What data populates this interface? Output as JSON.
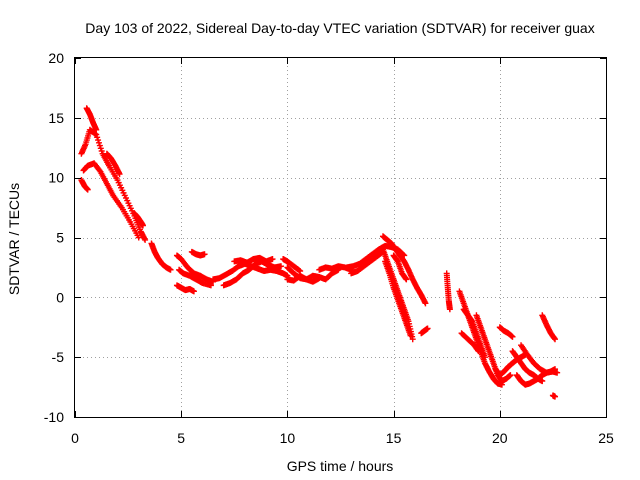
{
  "chart_data": {
    "type": "scatter",
    "title": "Day 103 of 2022, Sidereal Day-to-day VTEC variation (SDTVAR) for receiver guax",
    "xlabel": "GPS time / hours",
    "ylabel": "SDTVAR / TECUs",
    "xlim": [
      0,
      25
    ],
    "ylim": [
      -10,
      20
    ],
    "xticks": [
      0,
      5,
      10,
      15,
      20,
      25
    ],
    "yticks": [
      -10,
      -5,
      0,
      5,
      10,
      15,
      20
    ],
    "xtick_labels": [
      "0",
      "5",
      "10",
      "15",
      "20",
      "25"
    ],
    "ytick_labels": [
      "-10",
      "-5",
      "0",
      "5",
      "10",
      "15",
      "20"
    ],
    "grid": true,
    "marker": "+",
    "series": [
      {
        "name": "SDTVAR",
        "color": "#ff0000",
        "segments": [
          {
            "x": [
              0.3,
              0.5,
              0.7,
              1.0,
              1.3,
              1.6,
              2.0,
              2.4,
              2.8,
              3.1,
              3.3
            ],
            "y": [
              12.0,
              12.8,
              14.0,
              13.6,
              12.0,
              11.0,
              9.8,
              8.3,
              6.8,
              5.5,
              4.8
            ]
          },
          {
            "x": [
              0.4,
              0.6,
              0.9,
              1.2,
              1.5,
              1.8,
              2.2,
              2.6,
              3.0
            ],
            "y": [
              10.6,
              11.0,
              11.2,
              10.5,
              9.5,
              8.5,
              7.5,
              6.3,
              5.0
            ]
          },
          {
            "x": [
              0.3,
              0.45,
              0.6
            ],
            "y": [
              9.8,
              9.3,
              9.0
            ]
          },
          {
            "x": [
              0.55,
              0.7,
              0.85,
              1.0
            ],
            "y": [
              15.8,
              15.3,
              14.6,
              14.0
            ]
          },
          {
            "x": [
              1.5,
              1.7,
              1.9,
              2.1
            ],
            "y": [
              12.0,
              11.6,
              11.0,
              10.3
            ]
          },
          {
            "x": [
              2.8,
              2.95,
              3.1,
              3.2
            ],
            "y": [
              7.0,
              6.7,
              6.3,
              6.0
            ]
          },
          {
            "x": [
              3.6,
              3.75,
              3.9,
              4.1,
              4.3,
              4.5
            ],
            "y": [
              4.5,
              3.8,
              3.3,
              2.8,
              2.5,
              2.3
            ]
          },
          {
            "x": [
              4.8,
              5.0,
              5.3,
              5.6,
              5.9,
              6.2,
              6.5
            ],
            "y": [
              3.5,
              3.2,
              2.5,
              2.0,
              1.8,
              1.5,
              1.3
            ]
          },
          {
            "x": [
              4.9,
              5.1,
              5.4,
              5.7,
              6.0,
              6.4
            ],
            "y": [
              2.3,
              2.0,
              1.8,
              1.5,
              1.2,
              1.0
            ]
          },
          {
            "x": [
              4.8,
              5.0,
              5.2,
              5.4,
              5.6
            ],
            "y": [
              1.0,
              0.8,
              0.6,
              0.7,
              0.5
            ]
          },
          {
            "x": [
              5.5,
              5.7,
              5.9,
              6.1
            ],
            "y": [
              3.8,
              3.6,
              3.5,
              3.6
            ]
          },
          {
            "x": [
              6.5,
              6.8,
              7.1,
              7.4,
              7.7,
              8.0,
              8.3,
              8.6,
              8.9,
              9.2,
              9.5,
              9.8,
              10.0
            ],
            "y": [
              1.5,
              1.6,
              1.9,
              2.2,
              2.6,
              2.8,
              2.6,
              2.4,
              2.2,
              2.3,
              2.2,
              2.0,
              1.8
            ]
          },
          {
            "x": [
              7.0,
              7.3,
              7.6,
              7.9,
              8.2,
              8.5,
              8.8,
              9.1,
              9.4,
              9.7
            ],
            "y": [
              1.0,
              1.2,
              1.5,
              2.0,
              2.3,
              2.8,
              3.0,
              2.7,
              2.5,
              2.6
            ]
          },
          {
            "x": [
              7.5,
              7.8,
              8.1,
              8.4,
              8.7,
              9.0,
              9.3
            ],
            "y": [
              3.0,
              3.1,
              2.9,
              3.2,
              3.3,
              3.0,
              3.2
            ]
          },
          {
            "x": [
              10.0,
              10.3,
              10.6,
              10.9,
              11.2,
              11.5,
              11.8,
              12.1,
              12.4
            ],
            "y": [
              2.5,
              2.0,
              1.6,
              1.5,
              1.8,
              1.7,
              1.5,
              2.0,
              2.3
            ]
          },
          {
            "x": [
              10.0,
              10.3,
              10.6,
              10.9,
              11.2,
              11.5
            ],
            "y": [
              1.5,
              1.4,
              1.8,
              1.5,
              1.3,
              1.6
            ]
          },
          {
            "x": [
              9.8,
              10.0,
              10.3,
              10.6
            ],
            "y": [
              3.2,
              3.0,
              2.6,
              2.2
            ]
          },
          {
            "x": [
              11.5,
              11.8,
              12.1,
              12.4,
              12.7,
              13.0
            ],
            "y": [
              2.3,
              2.5,
              2.4,
              2.6,
              2.5,
              2.3
            ]
          },
          {
            "x": [
              12.8,
              13.1,
              13.4,
              13.7,
              14.0,
              14.3,
              14.6,
              14.9,
              15.2,
              15.5
            ],
            "y": [
              2.5,
              2.6,
              2.8,
              3.2,
              3.6,
              4.0,
              4.3,
              4.2,
              4.0,
              3.5
            ]
          },
          {
            "x": [
              13.0,
              13.3,
              13.6,
              13.9,
              14.2,
              14.5
            ],
            "y": [
              2.0,
              2.2,
              2.6,
              3.0,
              3.4,
              3.8
            ]
          },
          {
            "x": [
              14.5,
              14.7,
              14.9,
              15.1,
              15.3,
              15.5,
              15.7,
              15.9,
              16.1,
              16.3,
              16.5
            ],
            "y": [
              5.1,
              4.8,
              4.5,
              4.0,
              3.5,
              3.0,
              2.3,
              1.5,
              0.8,
              0.2,
              -0.5
            ]
          },
          {
            "x": [
              14.5,
              14.7,
              14.9,
              15.1,
              15.3,
              15.5,
              15.7,
              15.9
            ],
            "y": [
              4.0,
              3.0,
              2.0,
              1.0,
              0.0,
              -1.0,
              -2.0,
              -3.5
            ]
          },
          {
            "x": [
              14.6,
              14.8,
              15.0,
              15.2,
              15.4,
              15.6,
              15.8
            ],
            "y": [
              3.0,
              2.0,
              0.8,
              -0.2,
              -1.2,
              -2.2,
              -3.2
            ]
          },
          {
            "x": [
              15.0,
              15.2,
              15.4,
              15.6
            ],
            "y": [
              3.5,
              3.0,
              2.0,
              1.5
            ]
          },
          {
            "x": [
              16.3,
              16.45,
              16.6
            ],
            "y": [
              -3.0,
              -2.8,
              -2.6
            ]
          },
          {
            "x": [
              17.5,
              17.55,
              17.6,
              17.65
            ],
            "y": [
              2.0,
              0.8,
              -0.3,
              -1.0
            ]
          },
          {
            "x": [
              18.1,
              18.3,
              18.5,
              18.7,
              18.9,
              19.1,
              19.3,
              19.5,
              19.7,
              19.9,
              20.1
            ],
            "y": [
              0.5,
              -0.5,
              -1.5,
              -2.5,
              -3.5,
              -4.5,
              -5.5,
              -6.2,
              -6.8,
              -7.2,
              -7.3
            ]
          },
          {
            "x": [
              18.3,
              18.5,
              18.7,
              18.9,
              19.1,
              19.3
            ],
            "y": [
              -1.0,
              -1.5,
              -2.0,
              -3.0,
              -4.0,
              -5.0
            ]
          },
          {
            "x": [
              18.2,
              18.5,
              18.8,
              19.0
            ],
            "y": [
              -3.0,
              -3.5,
              -4.0,
              -4.5
            ]
          },
          {
            "x": [
              18.9,
              19.1,
              19.3,
              19.5,
              19.7,
              19.9,
              20.1,
              20.3,
              20.5
            ],
            "y": [
              -1.5,
              -2.5,
              -3.5,
              -4.5,
              -5.5,
              -6.5,
              -7.0,
              -6.8,
              -6.5
            ]
          },
          {
            "x": [
              19.8,
              20.0,
              20.2,
              20.4,
              20.6,
              20.8,
              21.0,
              21.2
            ],
            "y": [
              -6.0,
              -6.5,
              -6.2,
              -5.8,
              -5.5,
              -5.2,
              -5.0,
              -4.8
            ]
          },
          {
            "x": [
              20.0,
              20.2,
              20.4,
              20.6
            ],
            "y": [
              -2.5,
              -2.8,
              -3.0,
              -3.3
            ]
          },
          {
            "x": [
              20.6,
              20.8,
              21.0,
              21.2,
              21.4,
              21.6,
              21.8,
              22.0,
              22.2,
              22.4,
              22.6
            ],
            "y": [
              -4.5,
              -5.0,
              -5.5,
              -6.0,
              -6.3,
              -6.5,
              -6.8,
              -6.5,
              -6.3,
              -6.2,
              -6.0
            ]
          },
          {
            "x": [
              20.8,
              21.0,
              21.2,
              21.4,
              21.6,
              21.8,
              22.0
            ],
            "y": [
              -6.5,
              -7.0,
              -7.3,
              -7.2,
              -7.0,
              -6.8,
              -7.0
            ]
          },
          {
            "x": [
              21.0,
              21.3,
              21.6,
              21.9,
              22.2,
              22.5,
              22.7
            ],
            "y": [
              -4.0,
              -4.8,
              -5.5,
              -6.0,
              -6.3,
              -6.2,
              -6.3
            ]
          },
          {
            "x": [
              22.0,
              22.2,
              22.4,
              22.6
            ],
            "y": [
              -1.5,
              -2.3,
              -3.0,
              -3.5
            ]
          },
          {
            "x": [
              22.5,
              22.6
            ],
            "y": [
              -8.2,
              -8.3
            ]
          }
        ]
      }
    ]
  }
}
